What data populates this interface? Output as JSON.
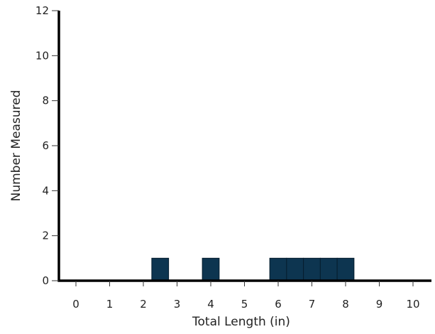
{
  "chart_data": {
    "type": "bar",
    "title": "",
    "xlabel": "Total Length (in)",
    "ylabel": "Number Measured",
    "xlim": [
      -0.5,
      10.5
    ],
    "ylim": [
      0,
      12
    ],
    "x_ticks": [
      0,
      1,
      2,
      3,
      4,
      5,
      6,
      7,
      8,
      9,
      10
    ],
    "y_ticks": [
      0,
      2,
      4,
      6,
      8,
      10,
      12
    ],
    "bin_width": 0.5,
    "series": [
      {
        "values": [
          {
            "x": 2.5,
            "count": 1
          },
          {
            "x": 4.0,
            "count": 1
          },
          {
            "x": 6.0,
            "count": 1
          },
          {
            "x": 6.5,
            "count": 1
          },
          {
            "x": 7.0,
            "count": 1
          },
          {
            "x": 7.5,
            "count": 1
          },
          {
            "x": 8.0,
            "count": 1
          }
        ]
      }
    ],
    "bar_color": "#0d3550",
    "axis_color": "#000000",
    "grid": false,
    "legend": "none"
  }
}
